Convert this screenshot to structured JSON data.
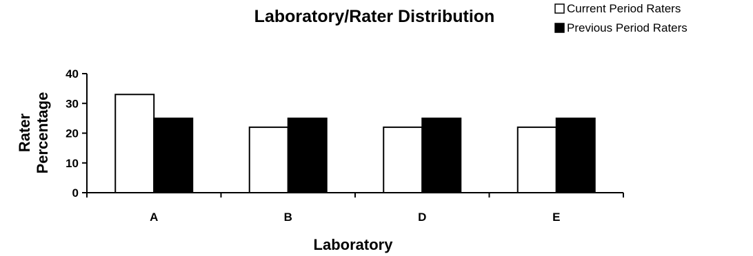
{
  "chart_data": {
    "type": "bar",
    "title": "Laboratory/Rater Distribution",
    "xlabel": "Laboratory",
    "ylabel_lines": [
      "Rater",
      "Percentage"
    ],
    "categories": [
      "A",
      "B",
      "D",
      "E"
    ],
    "series": [
      {
        "name": "Current Period Raters",
        "values": [
          33,
          22,
          22,
          22
        ],
        "color": "#ffffff"
      },
      {
        "name": "Previous Period Raters",
        "values": [
          25,
          25,
          25,
          25
        ],
        "color": "#000000"
      }
    ],
    "ylim": [
      0,
      40
    ],
    "yticks": [
      0,
      10,
      20,
      30,
      40
    ],
    "grid": false,
    "legend_position": "top-right"
  }
}
